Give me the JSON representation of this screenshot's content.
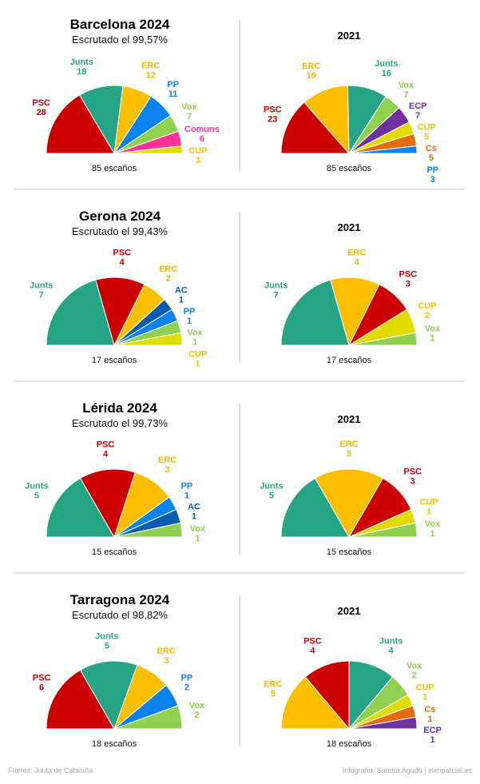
{
  "colors": {
    "PSC": "#cc0000",
    "Junts": "#26a586",
    "ERC": "#fbbf00",
    "PP": "#0a82f0",
    "Vox": "#8fd14f",
    "Comuns": "#ff3399",
    "CUP": "#e0dc00",
    "ECP": "#7030a0",
    "Cs": "#e46c0a",
    "AC": "#0b5cad"
  },
  "label_colors": {
    "CUP": "#f0c400",
    "ERC": "#f5b800"
  },
  "chart_data": [
    {
      "type": "pie",
      "subtype": "semicircle",
      "province": "Barcelona",
      "title": "Barcelona 2024",
      "subtitle": "Escrutado el 99,57%",
      "total_label": "85 escaños",
      "slices": [
        {
          "party": "PSC",
          "seats": 28
        },
        {
          "party": "Junts",
          "seats": 18
        },
        {
          "party": "ERC",
          "seats": 12
        },
        {
          "party": "PP",
          "seats": 11
        },
        {
          "party": "Vox",
          "seats": 7
        },
        {
          "party": "Comuns",
          "seats": 6
        },
        {
          "party": "CUP",
          "seats": 3
        }
      ]
    },
    {
      "type": "pie",
      "subtype": "semicircle",
      "province": "Barcelona",
      "title": "2021",
      "total_label": "85 escaños",
      "slices": [
        {
          "party": "PSC",
          "seats": 23
        },
        {
          "party": "ERC",
          "seats": 19
        },
        {
          "party": "Junts",
          "seats": 16
        },
        {
          "party": "Vox",
          "seats": 7
        },
        {
          "party": "ECP",
          "seats": 7
        },
        {
          "party": "CUP",
          "seats": 5
        },
        {
          "party": "Cs",
          "seats": 5
        },
        {
          "party": "PP",
          "seats": 3
        }
      ]
    },
    {
      "type": "pie",
      "subtype": "semicircle",
      "province": "Gerona",
      "title": "Gerona 2024",
      "subtitle": "Escrutado el 99,43%",
      "total_label": "17 escaños",
      "slices": [
        {
          "party": "Junts",
          "seats": 7
        },
        {
          "party": "PSC",
          "seats": 4
        },
        {
          "party": "ERC",
          "seats": 2
        },
        {
          "party": "AC",
          "seats": 1
        },
        {
          "party": "PP",
          "seats": 1
        },
        {
          "party": "Vox",
          "seats": 1
        },
        {
          "party": "CUP",
          "seats": 1
        }
      ]
    },
    {
      "type": "pie",
      "subtype": "semicircle",
      "province": "Gerona",
      "title": "2021",
      "total_label": "17 escaños",
      "slices": [
        {
          "party": "Junts",
          "seats": 7
        },
        {
          "party": "ERC",
          "seats": 4
        },
        {
          "party": "PSC",
          "seats": 3
        },
        {
          "party": "CUP",
          "seats": 2
        },
        {
          "party": "Vox",
          "seats": 1
        }
      ]
    },
    {
      "type": "pie",
      "subtype": "semicircle",
      "province": "Lérida",
      "title": "Lérida 2024",
      "subtitle": "Escrutado el 99,73%",
      "total_label": "15 escaños",
      "slices": [
        {
          "party": "Junts",
          "seats": 5
        },
        {
          "party": "PSC",
          "seats": 4
        },
        {
          "party": "ERC",
          "seats": 3
        },
        {
          "party": "PP",
          "seats": 1
        },
        {
          "party": "AC",
          "seats": 1
        },
        {
          "party": "Vox",
          "seats": 1
        }
      ]
    },
    {
      "type": "pie",
      "subtype": "semicircle",
      "province": "Lérida",
      "title": "2021",
      "total_label": "15 escaños",
      "slices": [
        {
          "party": "Junts",
          "seats": 5
        },
        {
          "party": "ERC",
          "seats": 5
        },
        {
          "party": "PSC",
          "seats": 3
        },
        {
          "party": "CUP",
          "seats": 1
        },
        {
          "party": "Vox",
          "seats": 1
        }
      ]
    },
    {
      "type": "pie",
      "subtype": "semicircle",
      "province": "Tarragona",
      "title": "Tarragona 2024",
      "subtitle": "Escrutado el 98,82%",
      "total_label": "18 escaños",
      "slices": [
        {
          "party": "PSC",
          "seats": 6
        },
        {
          "party": "Junts",
          "seats": 5
        },
        {
          "party": "ERC",
          "seats": 3
        },
        {
          "party": "PP",
          "seats": 2
        },
        {
          "party": "Vox",
          "seats": 2
        }
      ]
    },
    {
      "type": "pie",
      "subtype": "semicircle",
      "province": "Tarragona",
      "title": "2021",
      "total_label": "18 escaños",
      "slices": [
        {
          "party": "ERC",
          "seats": 5
        },
        {
          "party": "PSC",
          "seats": 4
        },
        {
          "party": "Junts",
          "seats": 4
        },
        {
          "party": "Vox",
          "seats": 2
        },
        {
          "party": "CUP",
          "seats": 1
        },
        {
          "party": "Cs",
          "seats": 1
        },
        {
          "party": "ECP",
          "seats": 1
        }
      ]
    }
  ],
  "footer": {
    "source": "Fuente:  Junta de Cataluña",
    "credit": "Infografía:  Sandra Agudo  | elimparcial.es"
  }
}
